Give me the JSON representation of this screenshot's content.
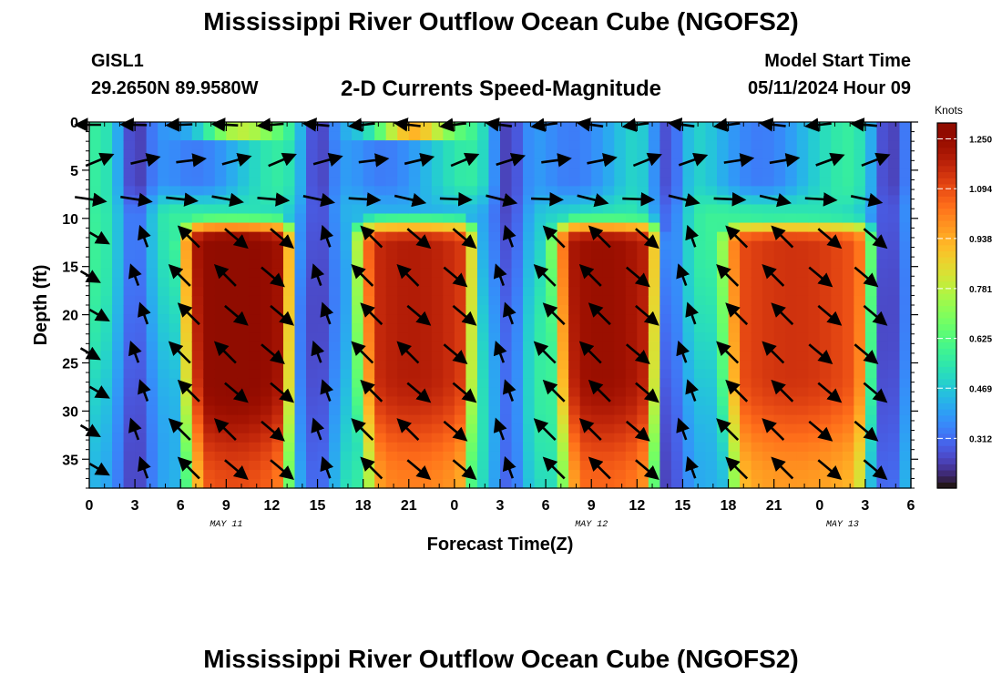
{
  "header": {
    "title": "Mississippi River Outflow Ocean Cube (NGOFS2)",
    "title_repeat": "Mississippi River Outflow Ocean Cube (NGOFS2)",
    "station_id": "GISL1",
    "station_coords": "29.2650N  89.9580W",
    "plot_title": "2-D Currents Speed-Magnitude",
    "model_start_label": "Model Start Time",
    "model_start_value": "05/11/2024 Hour 09"
  },
  "chart_data": {
    "type": "heatmap",
    "xlabel": "Forecast Time(Z)",
    "ylabel": "Depth (ft)",
    "x_range_hours": [
      0,
      54
    ],
    "y_range": [
      0,
      38
    ],
    "y_inverted": true,
    "x_tick_labels": [
      "0",
      "3",
      "6",
      "9",
      "12",
      "15",
      "18",
      "21",
      "0",
      "3",
      "6",
      "9",
      "12",
      "15",
      "18",
      "21",
      "0",
      "3",
      "6"
    ],
    "y_ticks": [
      0,
      5,
      10,
      15,
      20,
      25,
      30,
      35
    ],
    "date_labels": [
      {
        "label": "MAY 11",
        "tick_index": 3
      },
      {
        "label": "MAY 12",
        "tick_index": 11
      },
      {
        "label": "MAY 13",
        "tick_index": 16.5
      }
    ],
    "colorbar": {
      "title": "Knots",
      "range": [
        0.156,
        1.3
      ],
      "ticks": [
        0.312,
        0.469,
        0.625,
        0.781,
        0.938,
        1.094,
        1.25
      ],
      "tick_labels": [
        "0.312",
        "0.469",
        "0.625",
        "0.781",
        "0.938",
        "1.094",
        "1.250"
      ],
      "colormap": "turbo"
    },
    "grid": false,
    "pulses": [
      {
        "start_hour": 5.0,
        "end_hour": 14.0,
        "peak_knots": 1.3
      },
      {
        "start_hour": 16.5,
        "end_hour": 26.0,
        "peak_knots": 1.2
      },
      {
        "start_hour": 29.5,
        "end_hour": 38.0,
        "peak_knots": 1.25
      },
      {
        "start_hour": 40.5,
        "end_hour": 52.0,
        "peak_knots": 1.15
      }
    ],
    "lulls": [
      {
        "hour": 3.0,
        "knots": 0.16
      },
      {
        "hour": 15.0,
        "knots": 0.18
      },
      {
        "hour": 27.5,
        "knots": 0.32
      },
      {
        "hour": 38.0,
        "knots": 0.2
      },
      {
        "hour": 52.5,
        "knots": 0.28
      }
    ],
    "surface_layer": {
      "top_ft": 0,
      "bottom_ft": 8,
      "base_knots": 0.45
    },
    "vector_depths_ft": [
      0,
      4,
      8,
      12,
      16,
      20,
      24,
      28,
      32,
      36
    ],
    "vector_hours": [
      0,
      3,
      6,
      9,
      12,
      15,
      18,
      21,
      24,
      27,
      30,
      33,
      36,
      39,
      42,
      45,
      48,
      51,
      54
    ]
  }
}
